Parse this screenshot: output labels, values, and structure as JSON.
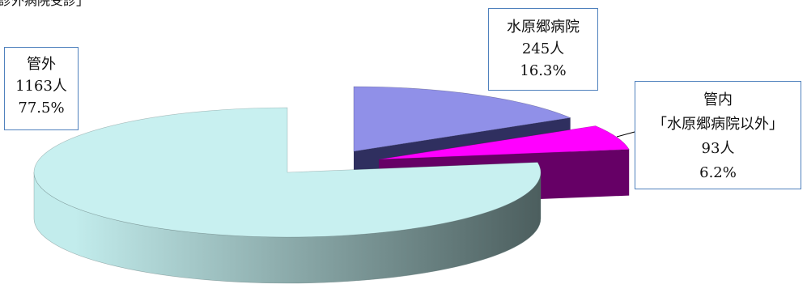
{
  "cropped_heading": "診外病院受診」",
  "chart_data": {
    "type": "pie",
    "three_d": true,
    "label_border_color": "#4f81bd",
    "slices": [
      {
        "label_lines": [
          "水原郷病院"
        ],
        "value": 245,
        "value_text": "245人",
        "percent_text": "16.3%",
        "exploded": true,
        "top_color": "#9090e8",
        "face_color": "#2f2f5f"
      },
      {
        "label_lines": [
          "管内",
          "「水原郷病院以外」"
        ],
        "value": 93,
        "value_text": "93人",
        "percent_text": "6.2%",
        "exploded": true,
        "top_color": "#ff00ff",
        "face_color": "#660066"
      },
      {
        "label_lines": [
          "管外"
        ],
        "value": 1163,
        "value_text": "1163人",
        "percent_text": "77.5%",
        "exploded": false,
        "top_color": "#c8f0f0",
        "face_color": "#5b7373",
        "side_light": "#c2ecec",
        "side_dark": "#4c5e5e"
      }
    ]
  }
}
